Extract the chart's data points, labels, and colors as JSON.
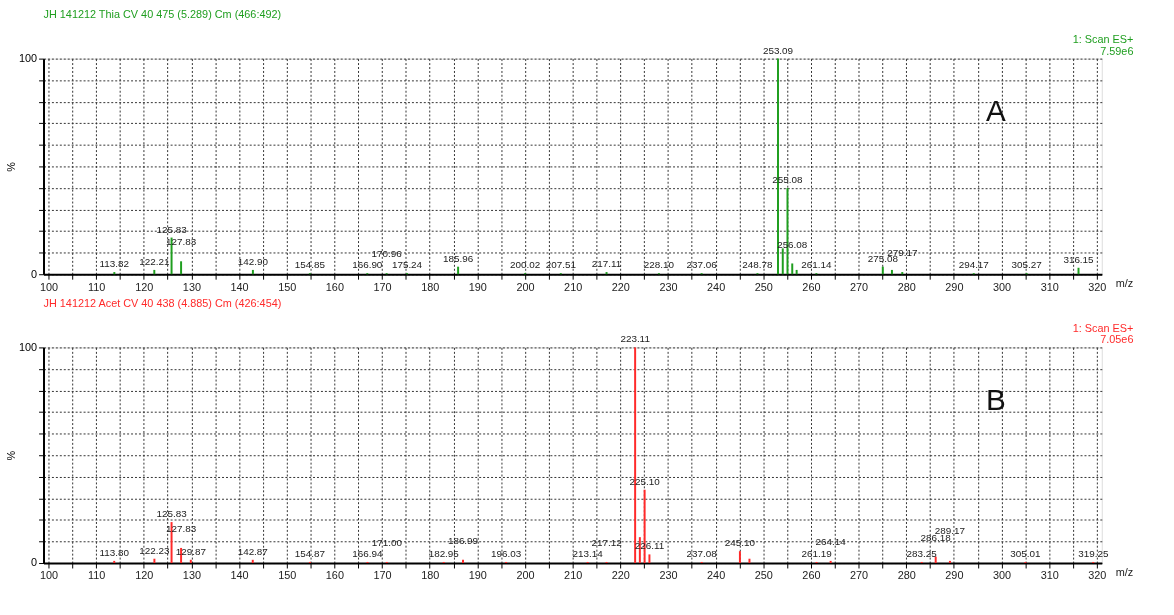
{
  "chart_data": [
    {
      "type": "bar",
      "title": "JH 141212 Thia CV 40 475 (5.289) Cm (466:492)",
      "xlabel": "m/z",
      "ylabel": "%",
      "annotations": [
        "1: Scan ES+",
        "7.59e6",
        "A",
        {
          "text": "113.82",
          "x": 113.82,
          "y": 1
        },
        {
          "text": "122.21",
          "x": 122.21,
          "y": 2
        },
        {
          "text": "125.83",
          "x": 125.83,
          "y": 17
        },
        {
          "text": "127.83",
          "x": 127.83,
          "y": 6
        },
        {
          "text": "142.90",
          "x": 142.9,
          "y": 2
        },
        {
          "text": "154.85",
          "x": 154.85,
          "y": 0.5
        },
        {
          "text": "166.90",
          "x": 166.9,
          "y": 0.5
        },
        {
          "text": "170.96",
          "x": 170.96,
          "y": 0.5
        },
        {
          "text": "175.24",
          "x": 175.24,
          "y": 0.5
        },
        {
          "text": "185.96",
          "x": 185.96,
          "y": 3.5
        },
        {
          "text": "200.02",
          "x": 200.02,
          "y": 0.5
        },
        {
          "text": "207.51",
          "x": 207.51,
          "y": 0.5
        },
        {
          "text": "217.11",
          "x": 217.11,
          "y": 1
        },
        {
          "text": "228.10",
          "x": 228.1,
          "y": 0.5
        },
        {
          "text": "237.06",
          "x": 237.06,
          "y": 0.5
        },
        {
          "text": "248.78",
          "x": 248.78,
          "y": 0.5
        },
        {
          "text": "253.09",
          "x": 253.09,
          "y": 100
        },
        {
          "text": "255.08",
          "x": 255.08,
          "y": 40
        },
        {
          "text": "256.08",
          "x": 256.08,
          "y": 5
        },
        {
          "text": "261.14",
          "x": 261.14,
          "y": 0.5
        },
        {
          "text": "275.08",
          "x": 275.08,
          "y": 3.5
        },
        {
          "text": "279.17",
          "x": 279.17,
          "y": 1
        },
        {
          "text": "294.17",
          "x": 294.17,
          "y": 0.5
        },
        {
          "text": "305.27",
          "x": 305.27,
          "y": 0.5
        },
        {
          "text": "316.15",
          "x": 316.15,
          "y": 3
        }
      ],
      "series": [
        {
          "color": "#1f9e1f",
          "x": [
            113.82,
            122.21,
            125.83,
            127.83,
            142.9,
            154.85,
            166.9,
            170.96,
            175.24,
            185.96,
            200.02,
            207.51,
            217.11,
            228.1,
            237.06,
            248.78,
            253.09,
            254.09,
            255.08,
            256.08,
            257.0,
            261.14,
            275.08,
            277.0,
            279.17,
            294.17,
            305.27,
            316.15
          ],
          "values": [
            1,
            2,
            17,
            6,
            2,
            0.5,
            0.5,
            0.5,
            0.5,
            3.5,
            0.5,
            0.5,
            1,
            0.5,
            0.5,
            0.5,
            100,
            12,
            40,
            5,
            2,
            0.5,
            3.5,
            2,
            1,
            0.5,
            0.5,
            3
          ]
        }
      ],
      "xlim": [
        100,
        320
      ],
      "ylim": [
        0,
        100
      ],
      "xticks": [
        100,
        {
          "value": 105,
          "label": null
        },
        110,
        {
          "value": 115,
          "label": null
        },
        120,
        {
          "value": 125,
          "label": null
        },
        130,
        {
          "value": 135,
          "label": null
        },
        140,
        {
          "value": 145,
          "label": null
        },
        150,
        {
          "value": 155,
          "label": null
        },
        160,
        {
          "value": 165,
          "label": null
        },
        170,
        {
          "value": 175,
          "label": null
        },
        180,
        {
          "value": 185,
          "label": null
        },
        190,
        {
          "value": 195,
          "label": null
        },
        200,
        {
          "value": 205,
          "label": null
        },
        210,
        {
          "value": 215,
          "label": null
        },
        220,
        {
          "value": 225,
          "label": null
        },
        230,
        {
          "value": 235,
          "label": null
        },
        240,
        {
          "value": 245,
          "label": null
        },
        250,
        {
          "value": 255,
          "label": null
        },
        260,
        {
          "value": 265,
          "label": null
        },
        270,
        {
          "value": 275,
          "label": null
        },
        280,
        {
          "value": 285,
          "label": null
        },
        290,
        {
          "value": 295,
          "label": null
        },
        300,
        {
          "value": 305,
          "label": null
        },
        310,
        {
          "value": 315,
          "label": null
        },
        320
      ],
      "yticks": [
        0,
        {
          "value": 10,
          "label": null
        },
        {
          "value": 20,
          "label": null
        },
        {
          "value": 30,
          "label": null
        },
        {
          "value": 40,
          "label": null
        },
        {
          "value": 50,
          "label": null
        },
        {
          "value": 60,
          "label": null
        },
        {
          "value": 70,
          "label": null
        },
        {
          "value": 80,
          "label": null
        },
        {
          "value": 90,
          "label": null
        },
        100
      ],
      "grid": true
    },
    {
      "type": "bar",
      "title": "JH 141212 Acet CV 40 438 (4.885) Cm (426:454)",
      "xlabel": "m/z",
      "ylabel": "%",
      "annotations": [
        "1: Scan ES+",
        "7.05e6",
        "B",
        {
          "text": "113.80",
          "x": 113.8,
          "y": 1
        },
        {
          "text": "122.23",
          "x": 122.23,
          "y": 2
        },
        {
          "text": "125.83",
          "x": 125.83,
          "y": 19
        },
        {
          "text": "127.83",
          "x": 127.83,
          "y": 7
        },
        {
          "text": "129.87",
          "x": 129.87,
          "y": 1.5
        },
        {
          "text": "142.87",
          "x": 142.87,
          "y": 1.5
        },
        {
          "text": "154.87",
          "x": 154.87,
          "y": 0.5
        },
        {
          "text": "166.94",
          "x": 166.94,
          "y": 0.5
        },
        {
          "text": "171.00",
          "x": 171.0,
          "y": 0.5
        },
        {
          "text": "182.95",
          "x": 182.95,
          "y": 0.5
        },
        {
          "text": "186.99",
          "x": 186.99,
          "y": 1.5
        },
        {
          "text": "196.03",
          "x": 196.03,
          "y": 0.5
        },
        {
          "text": "213.14",
          "x": 213.14,
          "y": 0.5
        },
        {
          "text": "217.12",
          "x": 217.12,
          "y": 0.5
        },
        {
          "text": "223.11",
          "x": 223.11,
          "y": 100
        },
        {
          "text": "225.10",
          "x": 225.1,
          "y": 34
        },
        {
          "text": "226.11",
          "x": 226.11,
          "y": 4
        },
        {
          "text": "237.08",
          "x": 237.08,
          "y": 0.5
        },
        {
          "text": "245.10",
          "x": 245.1,
          "y": 5.5
        },
        {
          "text": "261.19",
          "x": 261.19,
          "y": 0.5
        },
        {
          "text": "264.14",
          "x": 264.14,
          "y": 1
        },
        {
          "text": "283.25",
          "x": 283.25,
          "y": 0.5
        },
        {
          "text": "286.18",
          "x": 286.18,
          "y": 3
        },
        {
          "text": "289.17",
          "x": 289.17,
          "y": 1
        },
        {
          "text": "305.01",
          "x": 305.01,
          "y": 0.5
        },
        {
          "text": "319.25",
          "x": 319.25,
          "y": 0.5
        }
      ],
      "series": [
        {
          "color": "#ff2a2a",
          "x": [
            113.8,
            122.23,
            125.83,
            127.83,
            129.87,
            142.87,
            154.87,
            166.94,
            171.0,
            182.95,
            186.99,
            196.03,
            213.14,
            217.12,
            223.11,
            224.1,
            225.1,
            226.11,
            237.08,
            245.1,
            247.1,
            261.19,
            264.14,
            283.25,
            286.18,
            289.17,
            305.01,
            319.25
          ],
          "values": [
            1,
            2,
            19,
            7,
            1.5,
            1.5,
            0.5,
            0.5,
            0.5,
            0.5,
            1.5,
            0.5,
            0.5,
            0.5,
            100,
            12,
            34,
            4,
            0.5,
            5.5,
            2,
            0.5,
            1,
            0.5,
            3,
            1,
            0.5,
            0.5
          ]
        }
      ],
      "xlim": [
        100,
        320
      ],
      "ylim": [
        0,
        100
      ],
      "xticks": [
        100,
        {
          "value": 105,
          "label": null
        },
        110,
        {
          "value": 115,
          "label": null
        },
        120,
        {
          "value": 125,
          "label": null
        },
        130,
        {
          "value": 135,
          "label": null
        },
        140,
        {
          "value": 145,
          "label": null
        },
        150,
        {
          "value": 155,
          "label": null
        },
        160,
        {
          "value": 165,
          "label": null
        },
        170,
        {
          "value": 175,
          "label": null
        },
        180,
        {
          "value": 185,
          "label": null
        },
        190,
        {
          "value": 195,
          "label": null
        },
        200,
        {
          "value": 205,
          "label": null
        },
        210,
        {
          "value": 215,
          "label": null
        },
        220,
        {
          "value": 225,
          "label": null
        },
        230,
        {
          "value": 235,
          "label": null
        },
        240,
        {
          "value": 245,
          "label": null
        },
        250,
        {
          "value": 255,
          "label": null
        },
        260,
        {
          "value": 265,
          "label": null
        },
        270,
        {
          "value": 275,
          "label": null
        },
        280,
        {
          "value": 285,
          "label": null
        },
        290,
        {
          "value": 295,
          "label": null
        },
        300,
        {
          "value": 305,
          "label": null
        },
        310,
        {
          "value": 315,
          "label": null
        },
        320
      ],
      "yticks": [
        0,
        {
          "value": 10,
          "label": null
        },
        {
          "value": 20,
          "label": null
        },
        {
          "value": 30,
          "label": null
        },
        {
          "value": 40,
          "label": null
        },
        {
          "value": 50,
          "label": null
        },
        {
          "value": 60,
          "label": null
        },
        {
          "value": 70,
          "label": null
        },
        {
          "value": 80,
          "label": null
        },
        {
          "value": 90,
          "label": null
        },
        100
      ],
      "grid": true
    }
  ]
}
